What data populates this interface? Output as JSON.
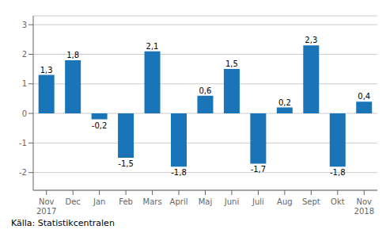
{
  "chart_data": {
    "type": "bar",
    "categories": [
      "Nov\n2017",
      "Dec",
      "Jan",
      "Feb",
      "Mars",
      "April",
      "Maj",
      "Juni",
      "Juli",
      "Aug",
      "Sept",
      "Okt",
      "Nov\n2018"
    ],
    "values": [
      1.3,
      1.8,
      -0.2,
      -1.5,
      2.1,
      -1.8,
      0.6,
      1.5,
      -1.7,
      0.2,
      2.3,
      -1.8,
      0.4
    ],
    "value_labels": [
      "1,3",
      "1,8",
      "-0,2",
      "-1,5",
      "2,1",
      "-1,8",
      "0,6",
      "1,5",
      "-1,7",
      "0,2",
      "2,3",
      "-1,8",
      "0,4"
    ],
    "color": "#1a74b8",
    "ylim": [
      -2.6,
      3.3
    ],
    "yticks": [
      -2,
      -1,
      0,
      1,
      2,
      3
    ],
    "grid": true,
    "data_labels": true,
    "source": "Källa: Statistikcentralen"
  }
}
